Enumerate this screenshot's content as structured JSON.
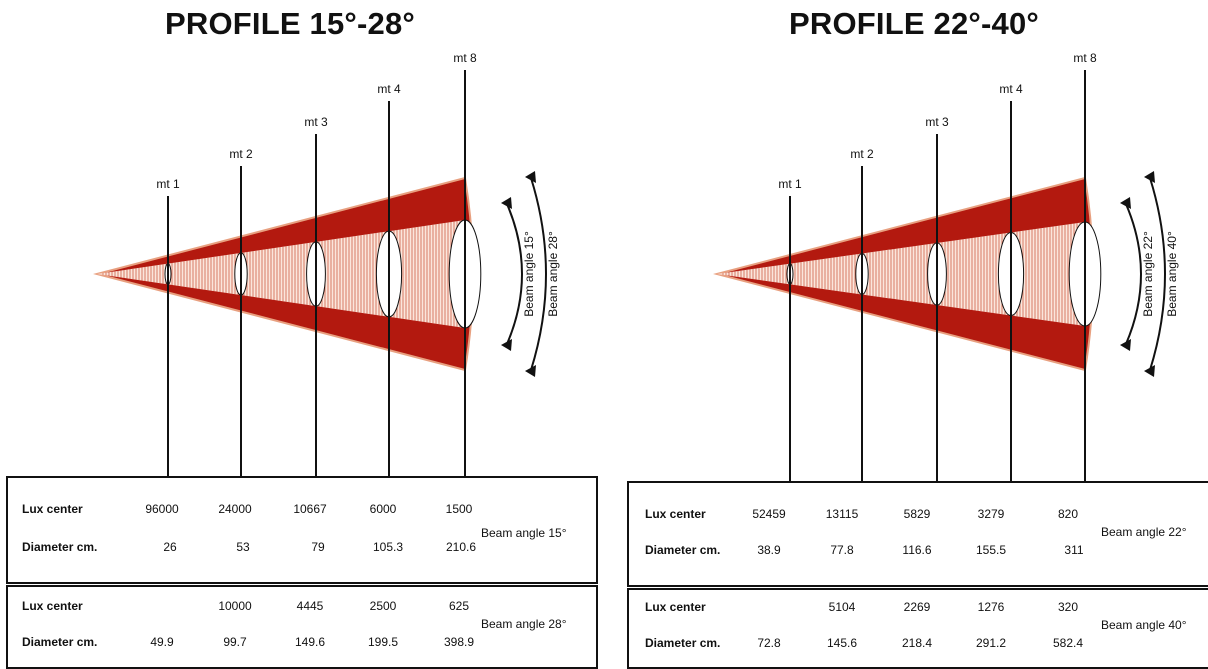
{
  "panels": [
    {
      "title": "PROFILE 15°-28°",
      "markers": [
        "mt 1",
        "mt 2",
        "mt 3",
        "mt 4",
        "mt 8"
      ],
      "arc_labels": [
        "Beam angle 15°",
        "Beam angle 28°"
      ],
      "tables": [
        {
          "row_labels": [
            "Lux center",
            "Diameter cm."
          ],
          "lux": [
            "96000",
            "24000",
            "10667",
            "6000",
            "1500"
          ],
          "diameter": [
            "26",
            "53",
            "79",
            "105.3",
            "210.6"
          ],
          "note": "Beam angle 15°"
        },
        {
          "row_labels": [
            "Lux center",
            "Diameter cm."
          ],
          "lux": [
            "",
            "10000",
            "4445",
            "2500",
            "625"
          ],
          "diameter": [
            "49.9",
            "99.7",
            "149.6",
            "199.5",
            "398.9"
          ],
          "note": "Beam angle 28°"
        }
      ]
    },
    {
      "title": "PROFILE 22°-40°",
      "markers": [
        "mt 1",
        "mt 2",
        "mt 3",
        "mt 4",
        "mt 8"
      ],
      "arc_labels": [
        "Beam angle 22°",
        "Beam angle 40°"
      ],
      "tables": [
        {
          "row_labels": [
            "Lux center",
            "Diameter cm."
          ],
          "lux": [
            "52459",
            "13115",
            "5829",
            "3279",
            "820"
          ],
          "diameter": [
            "38.9",
            "77.8",
            "116.6",
            "155.5",
            "311"
          ],
          "note": "Beam angle 22°"
        },
        {
          "row_labels": [
            "Lux center",
            "Diameter cm."
          ],
          "lux": [
            "",
            "5104",
            "2269",
            "1276",
            "320"
          ],
          "diameter": [
            "72.8",
            "145.6",
            "218.4",
            "291.2",
            "582.4"
          ],
          "note": "Beam angle 40°"
        }
      ]
    }
  ],
  "colors": {
    "beam_outer": "#b3190f",
    "beam_inner": "#f2b9a0",
    "beam_edge": "#e8a080",
    "line": "#111111"
  }
}
